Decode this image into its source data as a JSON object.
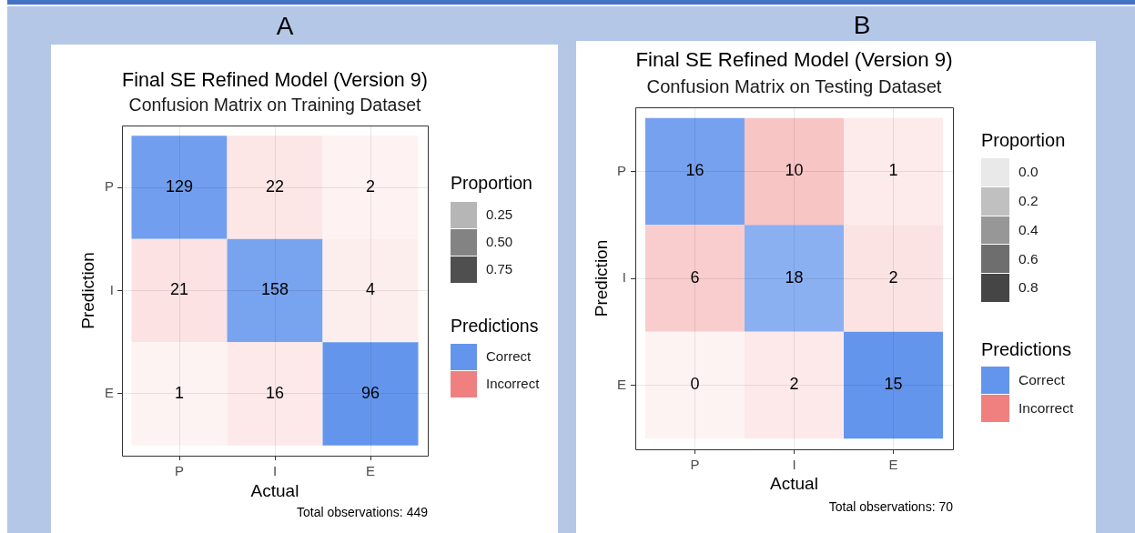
{
  "chart_data": [
    {
      "type": "heatmap",
      "title": "Final SE Refined Model (Version 9)",
      "subtitle": "Confusion Matrix on Training Dataset",
      "xlabel": "Actual",
      "ylabel": "Prediction",
      "categories": [
        "P",
        "I",
        "E"
      ],
      "y_categories": [
        "P",
        "I",
        "E"
      ],
      "cells": [
        [
          129,
          22,
          2
        ],
        [
          21,
          158,
          4
        ],
        [
          1,
          16,
          96
        ]
      ],
      "colors": [
        [
          "#719eee",
          "#fce6e6",
          "#fef2f2"
        ],
        [
          "#fce2e2",
          "#78a3ef",
          "#fdeeee"
        ],
        [
          "#fef3f3",
          "#fde9e9",
          "#6495ed"
        ]
      ],
      "data_labels": true,
      "legend_title": "Predictions",
      "legend": "right",
      "grid": true,
      "series": [
        {
          "name": "Correct",
          "color": "#6495ed",
          "values": [
            null,
            null,
            null
          ]
        },
        {
          "name": "Incorrect",
          "color": "#f08080",
          "values": [
            null,
            null,
            null
          ]
        }
      ],
      "annotations": [
        "A",
        "Total observations: 449",
        "Proportion",
        "0.25",
        "0.50",
        "0.75"
      ]
    },
    {
      "type": "heatmap",
      "title": "Final SE Refined Model (Version 9)",
      "subtitle": "Confusion Matrix on Testing Dataset",
      "xlabel": "Actual",
      "ylabel": "Prediction",
      "categories": [
        "P",
        "I",
        "E"
      ],
      "y_categories": [
        "P",
        "I",
        "E"
      ],
      "cells": [
        [
          16,
          10,
          1
        ],
        [
          6,
          18,
          2
        ],
        [
          0,
          2,
          15
        ]
      ],
      "colors": [
        [
          "#76a1ef",
          "#f8c5c5",
          "#fdebeb"
        ],
        [
          "#f9cdcd",
          "#8bb0f2",
          "#fce3e3"
        ],
        [
          "#fef3f3",
          "#fde9e9",
          "#6495ed"
        ]
      ],
      "data_labels": true,
      "legend_title": "Predictions",
      "legend": "right",
      "grid": true,
      "series": [
        {
          "name": "Correct",
          "color": "#6495ed",
          "values": [
            null,
            null,
            null
          ]
        },
        {
          "name": "Incorrect",
          "color": "#f08080",
          "values": [
            null,
            null,
            null
          ]
        }
      ],
      "annotations": [
        "B",
        "Total observations: 70",
        "Proportion",
        "0.0",
        "0.2",
        "0.4",
        "0.6",
        "0.8"
      ]
    }
  ]
}
